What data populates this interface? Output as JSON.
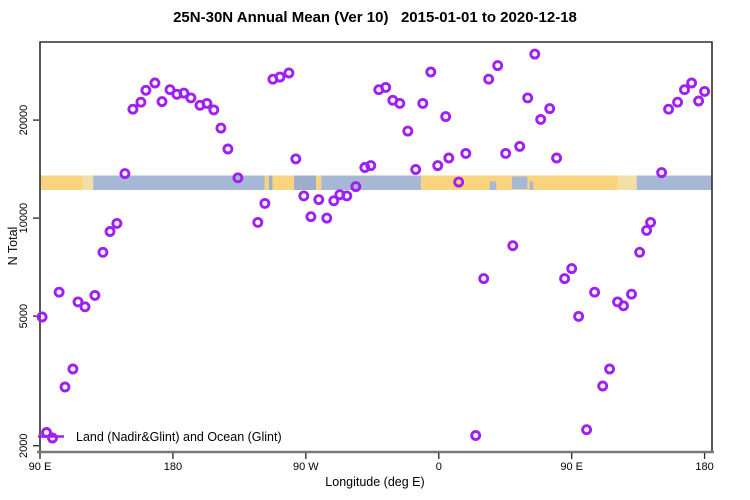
{
  "colors": {
    "point_purple": "#A020F0",
    "land": "#FAD37E",
    "land_light": "#F2DFA4",
    "ocean": "#A6B8D6",
    "ocean_dark": "#9DAECB",
    "box_border": "#2F2F2F",
    "bottom_axis": "#787878",
    "tick": "#333333",
    "text": "#000000"
  },
  "chart_data": {
    "type": "scatter",
    "title": "25N-30N Annual Mean (Ver 10)   2015-01-01 to 2020-12-18",
    "xlabel": "Longitude (deg E)",
    "ylabel": "N Total",
    "x_axis": {
      "scale": "linear",
      "unit": "deg E continuous eastward from 90E",
      "range": [
        90,
        545
      ],
      "ticks": [
        {
          "value": 90,
          "label": "90 E"
        },
        {
          "value": 180,
          "label": "180"
        },
        {
          "value": 270,
          "label": "90 W"
        },
        {
          "value": 360,
          "label": "0"
        },
        {
          "value": 450,
          "label": "90 E"
        },
        {
          "value": 540,
          "label": "180"
        }
      ]
    },
    "y_axis": {
      "scale": "log",
      "range": [
        1900,
        35000
      ],
      "ticks": [
        {
          "value": 2000,
          "label": "2000"
        },
        {
          "value": 5000,
          "label": "5000"
        },
        {
          "value": 10000,
          "label": "10000"
        },
        {
          "value": 20000,
          "label": "20000"
        }
      ],
      "grid": false
    },
    "legend": {
      "label": "Land (Nadir&Glint) and Ocean (Glint)",
      "position": "bottom-left",
      "symbol": "two overlapping purple open circles on a purple line"
    },
    "map_strip": {
      "description": "land/ocean band along 25N-30N drawn across plot at N≈12300-13500",
      "value_band": [
        12300,
        13500
      ],
      "segments": [
        {
          "from": 90,
          "to": 119,
          "type": "land"
        },
        {
          "from": 119,
          "to": 126,
          "type": "land_light"
        },
        {
          "from": 126,
          "to": 242,
          "type": "ocean"
        },
        {
          "from": 242,
          "to": 245,
          "type": "land"
        },
        {
          "from": 245,
          "to": 247.5,
          "type": "ocean_dark"
        },
        {
          "from": 247.5,
          "to": 262,
          "type": "land"
        },
        {
          "from": 262,
          "to": 277,
          "type": "ocean_dark"
        },
        {
          "from": 277,
          "to": 280.5,
          "type": "land"
        },
        {
          "from": 280.5,
          "to": 348,
          "type": "ocean"
        },
        {
          "from": 348,
          "to": 481,
          "type": "land"
        },
        {
          "from": 481,
          "to": 494,
          "type": "land_light"
        },
        {
          "from": 494,
          "to": 545,
          "type": "ocean"
        }
      ],
      "lakes": [
        {
          "from": 394.5,
          "to": 399,
          "full": false
        },
        {
          "from": 409.5,
          "to": 420,
          "full": true
        },
        {
          "from": 421.5,
          "to": 424,
          "full": false
        }
      ]
    },
    "points": [
      [
        152.9,
        21600
      ],
      [
        158.3,
        22700
      ],
      [
        161.7,
        24700
      ],
      [
        167.8,
        26000
      ],
      [
        172.6,
        22800
      ],
      [
        178.0,
        24800
      ],
      [
        182.7,
        24000
      ],
      [
        187.4,
        24200
      ],
      [
        192.2,
        23400
      ],
      [
        198.3,
        22200
      ],
      [
        203.0,
        22500
      ],
      [
        207.7,
        21500
      ],
      [
        212.5,
        18900
      ],
      [
        217.2,
        16300
      ],
      [
        147.5,
        13700
      ],
      [
        224.0,
        13300
      ],
      [
        247.7,
        26700
      ],
      [
        252.4,
        27100
      ],
      [
        258.5,
        27900
      ],
      [
        319.4,
        24800
      ],
      [
        324.1,
        25200
      ],
      [
        328.9,
        23000
      ],
      [
        333.6,
        22500
      ],
      [
        349.2,
        22500
      ],
      [
        354.6,
        28100
      ],
      [
        364.7,
        20500
      ],
      [
        339.0,
        18500
      ],
      [
        393.8,
        26700
      ],
      [
        263.2,
        15200
      ],
      [
        309.9,
        14300
      ],
      [
        314.0,
        14500
      ],
      [
        344.4,
        14100
      ],
      [
        359.3,
        14500
      ],
      [
        366.8,
        15300
      ],
      [
        378.3,
        15800
      ],
      [
        425.0,
        31900
      ],
      [
        399.9,
        29400
      ],
      [
        420.2,
        23400
      ],
      [
        435.1,
        21700
      ],
      [
        429.0,
        20100
      ],
      [
        414.8,
        16600
      ],
      [
        405.3,
        15800
      ],
      [
        439.8,
        15300
      ],
      [
        515.6,
        21600
      ],
      [
        521.7,
        22700
      ],
      [
        526.4,
        24800
      ],
      [
        531.2,
        26000
      ],
      [
        540.0,
        24500
      ],
      [
        535.9,
        22900
      ],
      [
        510.9,
        13800
      ],
      [
        142.1,
        9630
      ],
      [
        137.4,
        9100
      ],
      [
        132.6,
        7850
      ],
      [
        102.9,
        5920
      ],
      [
        115.7,
        5530
      ],
      [
        127.2,
        5790
      ],
      [
        120.5,
        5340
      ],
      [
        91.4,
        4970
      ],
      [
        242.3,
        11100
      ],
      [
        237.5,
        9700
      ],
      [
        268.6,
        11700
      ],
      [
        278.8,
        11400
      ],
      [
        288.9,
        11300
      ],
      [
        293.0,
        11800
      ],
      [
        297.7,
        11700
      ],
      [
        303.8,
        12500
      ],
      [
        273.4,
        10100
      ],
      [
        284.2,
        10000
      ],
      [
        390.4,
        6520
      ],
      [
        373.5,
        12900
      ],
      [
        410.1,
        8230
      ],
      [
        503.4,
        9700
      ],
      [
        500.7,
        9170
      ],
      [
        496.0,
        7850
      ],
      [
        450.0,
        7000
      ],
      [
        445.2,
        6520
      ],
      [
        465.5,
        5920
      ],
      [
        481.1,
        5530
      ],
      [
        485.1,
        5380
      ],
      [
        490.5,
        5840
      ],
      [
        454.7,
        4990
      ],
      [
        112.3,
        3440
      ],
      [
        106.9,
        3030
      ],
      [
        385.0,
        2150
      ],
      [
        475.7,
        3440
      ],
      [
        471.0,
        3050
      ],
      [
        460.1,
        2240
      ]
    ]
  }
}
